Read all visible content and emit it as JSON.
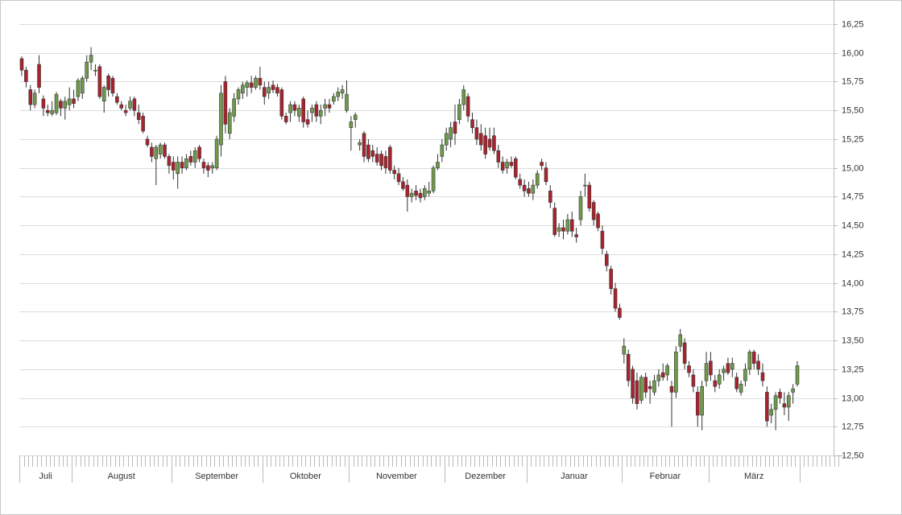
{
  "chart_data": {
    "type": "candlestick",
    "categories": [
      "Juli",
      null,
      null,
      null,
      null,
      null,
      null,
      null,
      null,
      null,
      null,
      null,
      "August",
      null,
      null,
      null,
      null,
      null,
      null,
      null,
      null,
      null,
      null,
      null,
      null,
      null,
      null,
      null,
      null,
      null,
      null,
      null,
      null,
      null,
      null,
      "September",
      null,
      null,
      null,
      null,
      null,
      null,
      null,
      null,
      null,
      null,
      null,
      null,
      null,
      null,
      null,
      null,
      null,
      null,
      null,
      null,
      "Oktober",
      null,
      null,
      null,
      null,
      null,
      null,
      null,
      null,
      null,
      null,
      null,
      null,
      null,
      null,
      null,
      null,
      null,
      null,
      null,
      "November",
      null,
      null,
      null,
      null,
      null,
      null,
      null,
      null,
      null,
      null,
      null,
      null,
      null,
      null,
      null,
      null,
      null,
      null,
      null,
      null,
      null,
      "Dezember",
      null,
      null,
      null,
      null,
      null,
      null,
      null,
      null,
      null,
      null,
      null,
      null,
      null,
      null,
      null,
      null,
      null,
      null,
      "Januar",
      null,
      null,
      null,
      null,
      null,
      null,
      null,
      null,
      null,
      null,
      null,
      null,
      null,
      null,
      null,
      null,
      null,
      null,
      null,
      null,
      null,
      "Februar",
      null,
      null,
      null,
      null,
      null,
      null,
      null,
      null,
      null,
      null,
      null,
      null,
      null,
      null,
      null,
      null,
      null,
      null,
      null,
      "März",
      null,
      null,
      null,
      null,
      null,
      null,
      null,
      null,
      null,
      null,
      null,
      null,
      null,
      null,
      null,
      null,
      null,
      null,
      null,
      null
    ],
    "open": [
      15.95,
      15.85,
      15.68,
      15.55,
      15.9,
      15.6,
      15.5,
      15.47,
      15.48,
      15.58,
      15.52,
      15.55,
      15.6,
      15.62,
      15.65,
      15.78,
      15.92,
      15.85,
      15.88,
      15.58,
      15.8,
      15.78,
      15.62,
      15.55,
      15.5,
      15.52,
      15.6,
      15.48,
      15.45,
      15.25,
      15.18,
      15.08,
      15.12,
      15.2,
      15.1,
      15.05,
      14.95,
      15.05,
      15.0,
      15.1,
      15.05,
      15.18,
      15.05,
      15.02,
      15.0,
      15.0,
      15.2,
      15.75,
      15.3,
      15.45,
      15.6,
      15.65,
      15.7,
      15.74,
      15.7,
      15.78,
      15.7,
      15.65,
      15.72,
      15.7,
      15.68,
      15.45,
      15.48,
      15.55,
      15.45,
      15.6,
      15.42,
      15.48,
      15.55,
      15.45,
      15.52,
      15.55,
      15.58,
      15.62,
      15.65,
      15.5,
      15.35,
      15.42,
      15.2,
      15.3,
      15.2,
      15.15,
      15.12,
      15.12,
      15.1,
      15.18,
      14.98,
      14.95,
      14.88,
      14.85,
      14.75,
      14.8,
      14.78,
      14.75,
      14.78,
      14.8,
      15.0,
      15.1,
      15.2,
      15.25,
      15.4,
      15.42,
      15.55,
      15.62,
      15.42,
      15.35,
      15.3,
      15.28,
      15.25,
      15.28,
      15.15,
      15.05,
      15.0,
      15.05,
      15.08,
      14.9,
      14.85,
      14.82,
      14.78,
      14.85,
      15.05,
      15.0,
      14.8,
      14.65,
      14.45,
      14.48,
      14.45,
      14.55,
      14.42,
      14.55,
      14.85,
      14.85,
      14.7,
      14.6,
      14.45,
      14.25,
      14.12,
      13.95,
      13.78,
      13.38,
      13.38,
      13.25,
      13.15,
      12.98,
      13.18,
      13.1,
      13.05,
      13.15,
      13.22,
      13.2,
      13.1,
      13.05,
      13.45,
      13.48,
      13.28,
      13.2,
      13.05,
      12.85,
      13.15,
      13.32,
      13.15,
      13.12,
      13.22,
      13.3,
      13.25,
      13.18,
      13.05,
      13.15,
      13.25,
      13.4,
      13.32,
      13.22,
      13.05,
      12.85,
      12.9,
      13.05,
      12.95,
      12.92,
      13.05,
      13.12
    ],
    "high": [
      15.97,
      15.88,
      15.72,
      15.68,
      15.98,
      15.63,
      15.55,
      15.58,
      15.66,
      15.6,
      15.62,
      15.7,
      15.68,
      15.78,
      15.8,
      15.98,
      16.05,
      15.9,
      15.9,
      15.72,
      15.82,
      15.8,
      15.65,
      15.58,
      15.55,
      15.62,
      15.62,
      15.55,
      15.48,
      15.28,
      15.22,
      15.2,
      15.22,
      15.22,
      15.12,
      15.1,
      15.1,
      15.1,
      15.12,
      15.15,
      15.18,
      15.2,
      15.08,
      15.05,
      15.05,
      15.28,
      15.72,
      15.8,
      15.52,
      15.65,
      15.7,
      15.75,
      15.76,
      15.8,
      15.8,
      15.88,
      15.75,
      15.75,
      15.76,
      15.73,
      15.7,
      15.48,
      15.58,
      15.58,
      15.55,
      15.62,
      15.5,
      15.55,
      15.58,
      15.55,
      15.6,
      15.6,
      15.65,
      15.7,
      15.72,
      15.76,
      15.45,
      15.48,
      15.25,
      15.32,
      15.25,
      15.2,
      15.18,
      15.15,
      15.15,
      15.2,
      15.02,
      15.0,
      14.92,
      14.9,
      14.82,
      14.85,
      14.82,
      14.85,
      14.88,
      15.02,
      15.12,
      15.25,
      15.35,
      15.4,
      15.55,
      15.6,
      15.72,
      15.65,
      15.48,
      15.42,
      15.38,
      15.35,
      15.35,
      15.35,
      15.2,
      15.1,
      15.08,
      15.1,
      15.1,
      14.95,
      14.9,
      14.88,
      14.9,
      14.98,
      15.08,
      15.05,
      14.85,
      14.7,
      14.52,
      14.55,
      14.6,
      14.62,
      14.48,
      14.8,
      14.95,
      14.88,
      14.72,
      14.62,
      14.5,
      14.28,
      14.15,
      14.0,
      13.82,
      13.52,
      13.42,
      13.28,
      13.22,
      13.2,
      13.22,
      13.15,
      13.2,
      13.25,
      13.3,
      13.3,
      13.15,
      13.45,
      13.6,
      13.52,
      13.32,
      13.25,
      13.1,
      13.15,
      13.4,
      13.4,
      13.2,
      13.25,
      13.28,
      13.35,
      13.35,
      13.22,
      13.15,
      13.3,
      13.42,
      13.42,
      13.38,
      13.3,
      13.1,
      12.95,
      13.05,
      13.08,
      13.05,
      13.05,
      13.12,
      13.32
    ],
    "low": [
      15.8,
      15.7,
      15.5,
      15.52,
      15.65,
      15.45,
      15.45,
      15.45,
      15.46,
      15.45,
      15.42,
      15.5,
      15.52,
      15.58,
      15.6,
      15.75,
      15.85,
      15.8,
      15.6,
      15.48,
      15.62,
      15.62,
      15.55,
      15.5,
      15.45,
      15.5,
      15.45,
      15.38,
      15.3,
      15.18,
      15.05,
      14.85,
      15.08,
      15.08,
      14.95,
      14.9,
      14.82,
      14.95,
      14.98,
      15.02,
      15.0,
      15.05,
      14.95,
      14.92,
      14.95,
      14.98,
      15.1,
      15.3,
      15.25,
      15.4,
      15.55,
      15.6,
      15.62,
      15.65,
      15.68,
      15.68,
      15.55,
      15.6,
      15.65,
      15.62,
      15.42,
      15.38,
      15.4,
      15.45,
      15.4,
      15.35,
      15.35,
      15.4,
      15.4,
      15.38,
      15.45,
      15.48,
      15.55,
      15.58,
      15.6,
      15.48,
      15.15,
      15.35,
      15.15,
      15.05,
      15.05,
      15.05,
      15.02,
      14.98,
      14.95,
      14.95,
      14.9,
      14.85,
      14.8,
      14.62,
      14.7,
      14.72,
      14.7,
      14.72,
      14.75,
      14.78,
      14.98,
      15.05,
      15.15,
      15.18,
      15.2,
      15.38,
      15.5,
      15.4,
      15.3,
      15.2,
      15.15,
      15.08,
      15.15,
      15.12,
      15.0,
      14.95,
      14.95,
      15.0,
      14.9,
      14.82,
      14.75,
      14.75,
      14.72,
      14.82,
      14.98,
      14.85,
      14.65,
      14.4,
      14.4,
      14.38,
      14.42,
      14.4,
      14.35,
      14.5,
      14.75,
      14.62,
      14.5,
      14.45,
      14.25,
      14.1,
      13.9,
      13.75,
      13.68,
      13.3,
      13.1,
      12.95,
      12.9,
      12.95,
      13.0,
      12.95,
      13.02,
      13.1,
      13.15,
      13.15,
      12.75,
      13.0,
      13.4,
      13.25,
      13.18,
      13.05,
      12.75,
      12.72,
      13.1,
      13.15,
      13.05,
      13.08,
      13.15,
      13.2,
      13.18,
      13.05,
      13.02,
      13.1,
      13.2,
      13.25,
      13.2,
      13.1,
      12.75,
      12.78,
      12.72,
      12.95,
      12.85,
      12.8,
      12.95,
      13.1
    ],
    "close": [
      15.85,
      15.75,
      15.55,
      15.65,
      15.7,
      15.52,
      15.48,
      15.5,
      15.64,
      15.52,
      15.58,
      15.6,
      15.56,
      15.76,
      15.78,
      15.92,
      15.98,
      15.85,
      15.62,
      15.7,
      15.68,
      15.65,
      15.57,
      15.52,
      15.48,
      15.58,
      15.5,
      15.42,
      15.32,
      15.2,
      15.1,
      15.18,
      15.2,
      15.1,
      15.02,
      14.98,
      15.05,
      15.0,
      15.08,
      15.05,
      15.15,
      15.08,
      15.0,
      14.98,
      15.02,
      15.25,
      15.65,
      15.38,
      15.48,
      15.6,
      15.68,
      15.72,
      15.74,
      15.7,
      15.78,
      15.72,
      15.62,
      15.7,
      15.68,
      15.65,
      15.45,
      15.4,
      15.55,
      15.5,
      15.52,
      15.4,
      15.38,
      15.52,
      15.45,
      15.5,
      15.55,
      15.52,
      15.62,
      15.66,
      15.68,
      15.64,
      15.4,
      15.46,
      15.22,
      15.1,
      15.08,
      15.1,
      15.05,
      15.02,
      15.0,
      14.98,
      14.95,
      14.88,
      14.82,
      14.75,
      14.78,
      14.76,
      14.74,
      14.82,
      14.8,
      15.0,
      15.05,
      15.2,
      15.3,
      15.35,
      15.3,
      15.55,
      15.68,
      15.45,
      15.35,
      15.25,
      15.2,
      15.12,
      15.18,
      15.15,
      15.05,
      14.98,
      15.05,
      15.02,
      14.92,
      14.85,
      14.8,
      14.78,
      14.85,
      14.95,
      15.02,
      14.88,
      14.7,
      14.42,
      14.48,
      14.45,
      14.55,
      14.45,
      14.4,
      14.75,
      14.85,
      14.65,
      14.55,
      14.48,
      14.3,
      14.15,
      13.95,
      13.78,
      13.7,
      13.45,
      13.15,
      13.0,
      12.95,
      13.18,
      13.05,
      13.08,
      13.15,
      13.2,
      13.18,
      13.28,
      13.05,
      13.4,
      13.55,
      13.3,
      13.22,
      13.1,
      12.85,
      13.1,
      13.3,
      13.2,
      13.1,
      13.2,
      13.25,
      13.22,
      13.3,
      13.08,
      13.12,
      13.25,
      13.4,
      13.3,
      13.25,
      13.15,
      12.8,
      12.9,
      13.02,
      13.0,
      12.92,
      13.02,
      13.08,
      13.28
    ],
    "ylim": [
      12.5,
      16.25
    ],
    "yticks": [
      {
        "value": 12.5,
        "label": "12,50"
      },
      {
        "value": 12.75,
        "label": "12,75"
      },
      {
        "value": 13,
        "label": "13,00"
      },
      {
        "value": 13.25,
        "label": "13,25"
      },
      {
        "value": 13.5,
        "label": "13,50"
      },
      {
        "value": 13.75,
        "label": "13,75"
      },
      {
        "value": 14,
        "label": "14,00"
      },
      {
        "value": 14.25,
        "label": "14,25"
      },
      {
        "value": 14.5,
        "label": "14,50"
      },
      {
        "value": 14.75,
        "label": "14,75"
      },
      {
        "value": 15,
        "label": "15,00"
      },
      {
        "value": 15.25,
        "label": "15,25"
      },
      {
        "value": 15.5,
        "label": "15,50"
      },
      {
        "value": 15.75,
        "label": "15,75"
      },
      {
        "value": 16,
        "label": "16,00"
      },
      {
        "value": 16.25,
        "label": "16,25"
      }
    ],
    "grid": true,
    "up_color": "#6e9a4a",
    "down_color": "#a8232e"
  }
}
